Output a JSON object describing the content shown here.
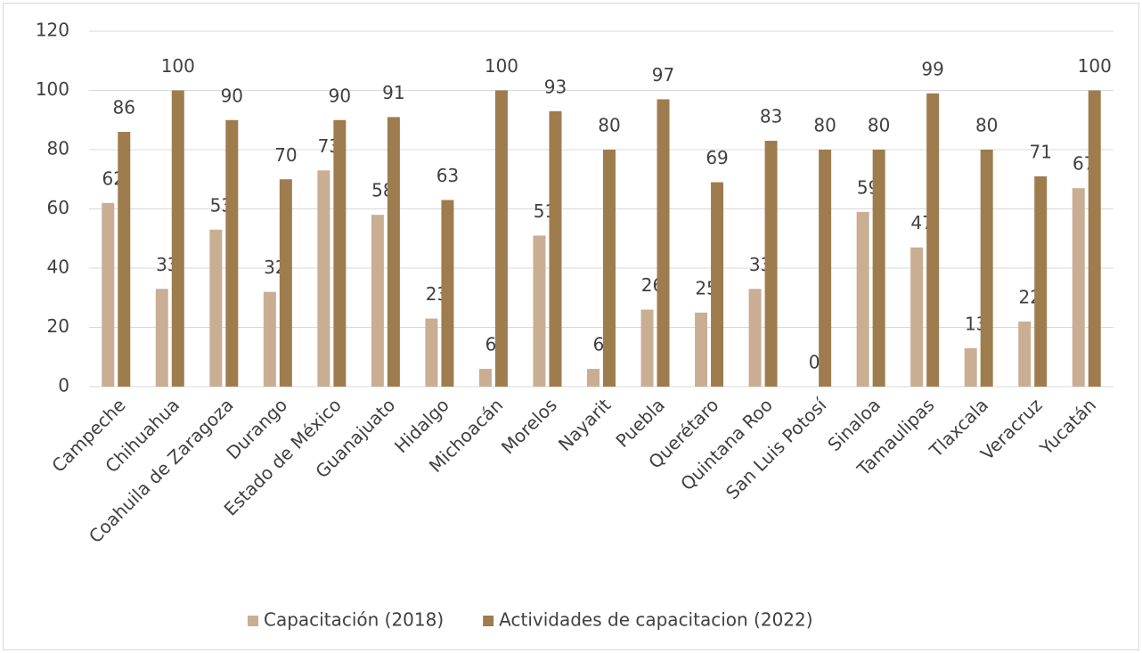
{
  "chart_data": {
    "type": "bar",
    "categories": [
      "Campeche",
      "Chihuahua",
      "Coahuila de Zaragoza",
      "Durango",
      "Estado de México",
      "Guanajuato",
      "Hidalgo",
      "Michoacán",
      "Morelos",
      "Nayarit",
      "Puebla",
      "Querétaro",
      "Quintana Roo",
      "San Luis Potosí",
      "Sinaloa",
      "Tamaulipas",
      "Tlaxcala",
      "Veracruz",
      "Yucatán"
    ],
    "series": [
      {
        "name": "Capacitación (2018)",
        "color": "#c9ae94",
        "values": [
          62,
          33,
          53,
          32,
          73,
          58,
          23,
          6,
          51,
          6,
          26,
          25,
          33,
          0,
          59,
          47,
          13,
          22,
          67
        ]
      },
      {
        "name": "Actividades de capacitacion (2022)",
        "color": "#9e7c4d",
        "values": [
          86,
          100,
          90,
          70,
          90,
          91,
          63,
          100,
          93,
          80,
          97,
          69,
          83,
          80,
          80,
          99,
          80,
          71,
          100
        ]
      }
    ],
    "ylim": [
      0,
      120
    ],
    "yticks": [
      0,
      20,
      40,
      60,
      80,
      100,
      120
    ],
    "grid": true,
    "legend": "bottom"
  }
}
